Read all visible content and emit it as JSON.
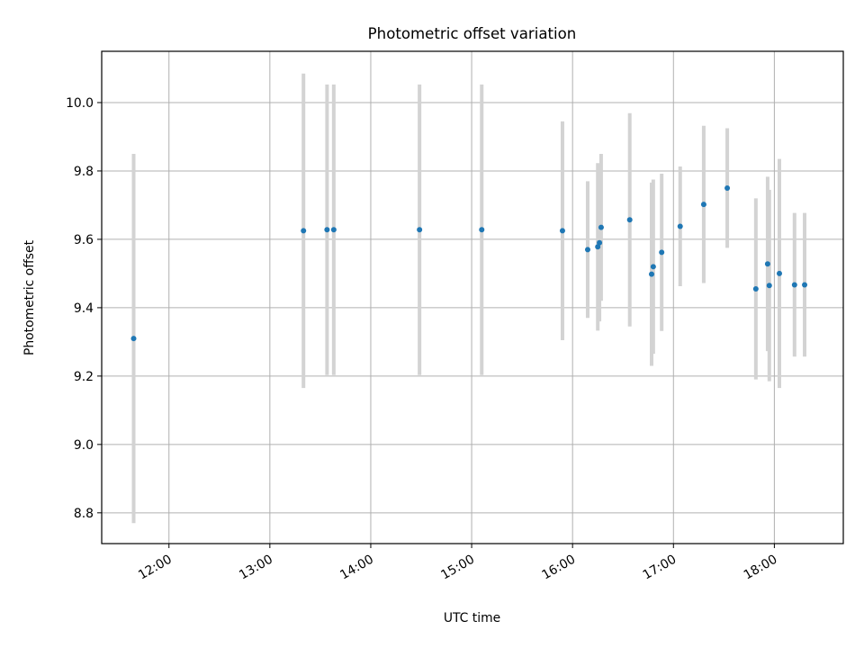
{
  "chart_data": {
    "type": "scatter",
    "title": "Photometric offset variation",
    "xlabel": "UTC time",
    "ylabel": "Photometric offset",
    "x_unit": "UTC time of day",
    "xlim": [
      "11:20",
      "18:41"
    ],
    "ylim": [
      8.71,
      10.15
    ],
    "grid": true,
    "x_ticks": [
      "12:00",
      "13:00",
      "14:00",
      "15:00",
      "16:00",
      "17:00",
      "18:00"
    ],
    "y_ticks": [
      8.8,
      9.0,
      9.2,
      9.4,
      9.6,
      9.8,
      10.0
    ],
    "point_color": "#1f77b4",
    "errorbar_color": "#d3d3d3",
    "series": [
      {
        "points": [
          {
            "x": "11:39",
            "y": 9.31,
            "err": 0.54
          },
          {
            "x": "13:20",
            "y": 9.625,
            "err": 0.46
          },
          {
            "x": "13:34",
            "y": 9.628,
            "err": 0.425
          },
          {
            "x": "13:38",
            "y": 9.628,
            "err": 0.425
          },
          {
            "x": "14:29",
            "y": 9.628,
            "err": 0.425
          },
          {
            "x": "15:06",
            "y": 9.628,
            "err": 0.425
          },
          {
            "x": "15:54",
            "y": 9.625,
            "err": 0.32
          },
          {
            "x": "16:09",
            "y": 9.57,
            "err": 0.2
          },
          {
            "x": "16:15",
            "y": 9.578,
            "err": 0.245
          },
          {
            "x": "16:16",
            "y": 9.59,
            "err": 0.23
          },
          {
            "x": "16:17",
            "y": 9.635,
            "err": 0.215
          },
          {
            "x": "16:34",
            "y": 9.657,
            "err": 0.312
          },
          {
            "x": "16:47",
            "y": 9.498,
            "err": 0.268
          },
          {
            "x": "16:48",
            "y": 9.52,
            "err": 0.255
          },
          {
            "x": "16:53",
            "y": 9.562,
            "err": 0.23
          },
          {
            "x": "17:04",
            "y": 9.638,
            "err": 0.175
          },
          {
            "x": "17:18",
            "y": 9.702,
            "err": 0.23
          },
          {
            "x": "17:32",
            "y": 9.75,
            "err": 0.175
          },
          {
            "x": "17:49",
            "y": 9.455,
            "err": 0.265
          },
          {
            "x": "17:56",
            "y": 9.528,
            "err": 0.255
          },
          {
            "x": "17:57",
            "y": 9.465,
            "err": 0.28
          },
          {
            "x": "18:03",
            "y": 9.5,
            "err": 0.335
          },
          {
            "x": "18:12",
            "y": 9.467,
            "err": 0.21
          },
          {
            "x": "18:18",
            "y": 9.467,
            "err": 0.21
          }
        ]
      }
    ]
  }
}
